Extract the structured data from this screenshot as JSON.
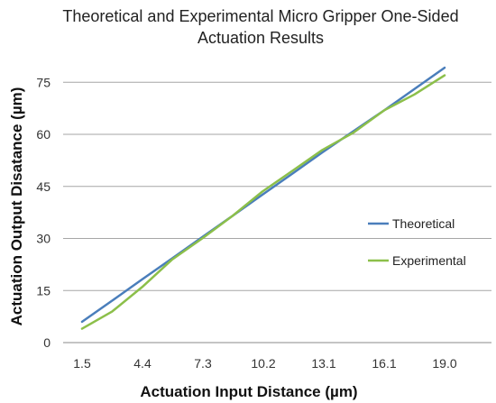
{
  "chart_data": {
    "type": "line",
    "title_line1": "Theoretical and Experimental Micro Gripper One-Sided",
    "title_line2": "Actuation Results",
    "xlabel": "Actuation Input Distance (µm)",
    "ylabel": "Actuation Output Disatance (µm)",
    "x_tick_labels": [
      "1.5",
      "4.4",
      "7.3",
      "10.2",
      "13.1",
      "16.1",
      "19.0"
    ],
    "y_ticks": [
      0,
      15,
      30,
      45,
      60,
      75
    ],
    "ylim": [
      0,
      80
    ],
    "grid": "horizontal",
    "legend_position": "right",
    "x": [
      1.5,
      2.96,
      4.4,
      5.86,
      7.3,
      8.76,
      10.2,
      11.66,
      13.1,
      14.6,
      16.1,
      17.55,
      19.0
    ],
    "series": [
      {
        "name": "Theoretical",
        "color": "#4a7ebb",
        "values": [
          6,
          12.1,
          18.2,
          24.3,
          30.4,
          36.5,
          42.6,
          48.7,
          54.8,
          60.9,
          67.0,
          73.1,
          79.2
        ]
      },
      {
        "name": "Experimental",
        "color": "#8cbf4a",
        "values": [
          4,
          9,
          16,
          24,
          30,
          36.5,
          43.5,
          49.5,
          55.5,
          60.5,
          67.0,
          71.5,
          77.0
        ]
      }
    ]
  }
}
